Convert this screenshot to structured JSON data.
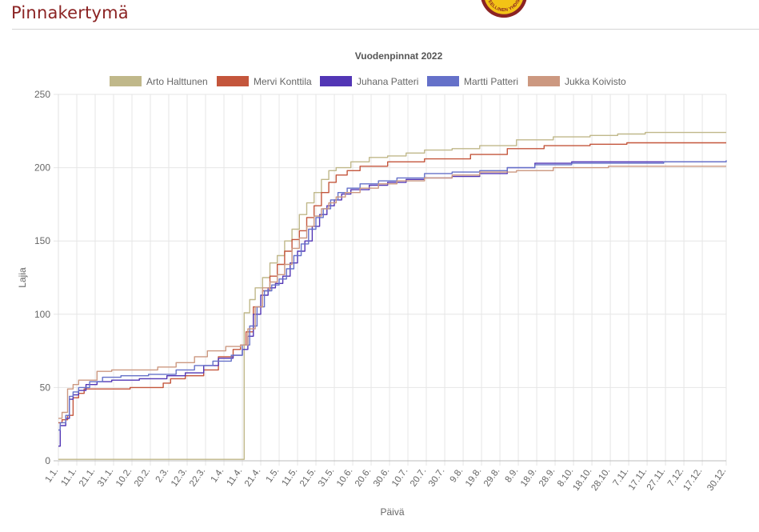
{
  "page": {
    "title": "Pinnakertymä"
  },
  "logo": {
    "text": "TIETEELLINEN YHDISTYS",
    "colors": {
      "outer": "#8b2323",
      "inner": "#f3c316",
      "ring": "#ffffff"
    }
  },
  "chart_data": {
    "type": "line",
    "title": "Vuodenpinnat 2022",
    "xlabel": "Päivä",
    "ylabel": "Lajia",
    "ylim": [
      0,
      250
    ],
    "yticks": [
      0,
      50,
      100,
      150,
      200,
      250
    ],
    "grid": true,
    "legend_position": "top",
    "x_domain": [
      1,
      364
    ],
    "x_ticks": [
      {
        "label": "1.1.",
        "day": 1
      },
      {
        "label": "11.1.",
        "day": 11
      },
      {
        "label": "21.1.",
        "day": 21
      },
      {
        "label": "31.1.",
        "day": 31
      },
      {
        "label": "10.2.",
        "day": 41
      },
      {
        "label": "20.2.",
        "day": 51
      },
      {
        "label": "2.3.",
        "day": 61
      },
      {
        "label": "12.3.",
        "day": 71
      },
      {
        "label": "22.3.",
        "day": 81
      },
      {
        "label": "1.4.",
        "day": 91
      },
      {
        "label": "11.4.",
        "day": 101
      },
      {
        "label": "21.4.",
        "day": 111
      },
      {
        "label": "1.5.",
        "day": 121
      },
      {
        "label": "11.5.",
        "day": 131
      },
      {
        "label": "21.5.",
        "day": 141
      },
      {
        "label": "31.5.",
        "day": 151
      },
      {
        "label": "10.6.",
        "day": 161
      },
      {
        "label": "20.6.",
        "day": 171
      },
      {
        "label": "30.6.",
        "day": 181
      },
      {
        "label": "10.7.",
        "day": 191
      },
      {
        "label": "20.7.",
        "day": 201
      },
      {
        "label": "30.7.",
        "day": 211
      },
      {
        "label": "9.8.",
        "day": 221
      },
      {
        "label": "19.8.",
        "day": 231
      },
      {
        "label": "29.8.",
        "day": 241
      },
      {
        "label": "8.9.",
        "day": 251
      },
      {
        "label": "18.9.",
        "day": 261
      },
      {
        "label": "28.9.",
        "day": 271
      },
      {
        "label": "8.10.",
        "day": 281
      },
      {
        "label": "18.10.",
        "day": 291
      },
      {
        "label": "28.10.",
        "day": 301
      },
      {
        "label": "7.11.",
        "day": 311
      },
      {
        "label": "17.11.",
        "day": 321
      },
      {
        "label": "27.11.",
        "day": 331
      },
      {
        "label": "7.12.",
        "day": 341
      },
      {
        "label": "17.12.",
        "day": 351
      },
      {
        "label": "30.12.",
        "day": 364
      }
    ],
    "series": [
      {
        "name": "Arto Halttunen",
        "color": "#c0b88a",
        "points": [
          [
            1,
            1
          ],
          [
            101,
            1
          ],
          [
            102,
            101
          ],
          [
            105,
            110
          ],
          [
            108,
            118
          ],
          [
            112,
            125
          ],
          [
            116,
            135
          ],
          [
            120,
            140
          ],
          [
            124,
            150
          ],
          [
            128,
            158
          ],
          [
            132,
            168
          ],
          [
            136,
            176
          ],
          [
            140,
            183
          ],
          [
            144,
            192
          ],
          [
            148,
            198
          ],
          [
            152,
            200
          ],
          [
            160,
            204
          ],
          [
            170,
            207
          ],
          [
            180,
            208
          ],
          [
            190,
            210
          ],
          [
            200,
            212
          ],
          [
            215,
            213
          ],
          [
            230,
            215
          ],
          [
            250,
            219
          ],
          [
            270,
            221
          ],
          [
            290,
            222
          ],
          [
            305,
            223
          ],
          [
            320,
            224
          ],
          [
            364,
            224
          ]
        ]
      },
      {
        "name": "Mervi Konttila",
        "color": "#c4563c",
        "points": [
          [
            1,
            26
          ],
          [
            3,
            28
          ],
          [
            6,
            31
          ],
          [
            9,
            43
          ],
          [
            12,
            46
          ],
          [
            15,
            49
          ],
          [
            30,
            49
          ],
          [
            40,
            50
          ],
          [
            50,
            50
          ],
          [
            58,
            53
          ],
          [
            62,
            56
          ],
          [
            70,
            58
          ],
          [
            80,
            62
          ],
          [
            88,
            71
          ],
          [
            96,
            76
          ],
          [
            100,
            79
          ],
          [
            103,
            88
          ],
          [
            107,
            105
          ],
          [
            112,
            116
          ],
          [
            116,
            126
          ],
          [
            120,
            134
          ],
          [
            124,
            143
          ],
          [
            128,
            151
          ],
          [
            132,
            157
          ],
          [
            136,
            166
          ],
          [
            140,
            174
          ],
          [
            144,
            183
          ],
          [
            148,
            190
          ],
          [
            152,
            195
          ],
          [
            158,
            198
          ],
          [
            165,
            201
          ],
          [
            180,
            204
          ],
          [
            200,
            206
          ],
          [
            225,
            209
          ],
          [
            245,
            213
          ],
          [
            265,
            215
          ],
          [
            290,
            216
          ],
          [
            310,
            217
          ],
          [
            364,
            217
          ]
        ]
      },
      {
        "name": "Juhana Patteri",
        "color": "#5236b5",
        "points": [
          [
            1,
            10
          ],
          [
            2,
            24
          ],
          [
            5,
            29
          ],
          [
            7,
            42
          ],
          [
            9,
            45
          ],
          [
            12,
            48
          ],
          [
            16,
            52
          ],
          [
            22,
            54
          ],
          [
            30,
            55
          ],
          [
            45,
            56
          ],
          [
            60,
            58
          ],
          [
            70,
            60
          ],
          [
            80,
            65
          ],
          [
            88,
            70
          ],
          [
            96,
            72
          ],
          [
            101,
            76
          ],
          [
            104,
            85
          ],
          [
            107,
            100
          ],
          [
            111,
            113
          ],
          [
            115,
            118
          ],
          [
            119,
            121
          ],
          [
            123,
            126
          ],
          [
            127,
            135
          ],
          [
            131,
            143
          ],
          [
            135,
            150
          ],
          [
            139,
            160
          ],
          [
            143,
            168
          ],
          [
            147,
            174
          ],
          [
            151,
            178
          ],
          [
            155,
            182
          ],
          [
            160,
            185
          ],
          [
            170,
            188
          ],
          [
            180,
            190
          ],
          [
            190,
            192
          ],
          [
            200,
            193
          ],
          [
            215,
            194
          ],
          [
            230,
            196
          ],
          [
            245,
            200
          ],
          [
            260,
            203
          ],
          [
            280,
            204
          ],
          [
            320,
            204
          ],
          [
            364,
            204
          ]
        ]
      },
      {
        "name": "Martti Patteri",
        "color": "#6571c9",
        "points": [
          [
            1,
            21
          ],
          [
            2,
            26
          ],
          [
            5,
            31
          ],
          [
            7,
            44
          ],
          [
            9,
            47
          ],
          [
            12,
            50
          ],
          [
            18,
            54
          ],
          [
            25,
            57
          ],
          [
            35,
            58
          ],
          [
            50,
            59
          ],
          [
            65,
            62
          ],
          [
            75,
            65
          ],
          [
            85,
            68
          ],
          [
            95,
            72
          ],
          [
            101,
            79
          ],
          [
            105,
            92
          ],
          [
            109,
            105
          ],
          [
            113,
            116
          ],
          [
            117,
            120
          ],
          [
            121,
            124
          ],
          [
            125,
            131
          ],
          [
            129,
            140
          ],
          [
            133,
            148
          ],
          [
            137,
            158
          ],
          [
            141,
            166
          ],
          [
            145,
            172
          ],
          [
            149,
            178
          ],
          [
            153,
            183
          ],
          [
            158,
            186
          ],
          [
            165,
            189
          ],
          [
            175,
            191
          ],
          [
            185,
            193
          ],
          [
            200,
            196
          ],
          [
            215,
            197
          ],
          [
            230,
            198
          ],
          [
            245,
            200
          ],
          [
            260,
            202
          ],
          [
            280,
            203
          ],
          [
            330,
            204
          ],
          [
            364,
            205
          ]
        ]
      },
      {
        "name": "Jukka Koivisto",
        "color": "#cc9880",
        "points": [
          [
            1,
            29
          ],
          [
            3,
            33
          ],
          [
            6,
            49
          ],
          [
            9,
            52
          ],
          [
            12,
            55
          ],
          [
            20,
            55
          ],
          [
            22,
            61
          ],
          [
            30,
            62
          ],
          [
            45,
            62
          ],
          [
            55,
            64
          ],
          [
            65,
            67
          ],
          [
            75,
            71
          ],
          [
            82,
            75
          ],
          [
            92,
            78
          ],
          [
            100,
            79
          ],
          [
            104,
            90
          ],
          [
            108,
            105
          ],
          [
            112,
            118
          ],
          [
            116,
            122
          ],
          [
            120,
            127
          ],
          [
            124,
            134
          ],
          [
            128,
            145
          ],
          [
            132,
            152
          ],
          [
            136,
            160
          ],
          [
            140,
            167
          ],
          [
            144,
            172
          ],
          [
            148,
            176
          ],
          [
            152,
            180
          ],
          [
            157,
            183
          ],
          [
            165,
            186
          ],
          [
            175,
            189
          ],
          [
            185,
            191
          ],
          [
            200,
            193
          ],
          [
            215,
            195
          ],
          [
            230,
            197
          ],
          [
            250,
            198
          ],
          [
            270,
            200
          ],
          [
            300,
            201
          ],
          [
            364,
            201
          ]
        ]
      }
    ]
  }
}
